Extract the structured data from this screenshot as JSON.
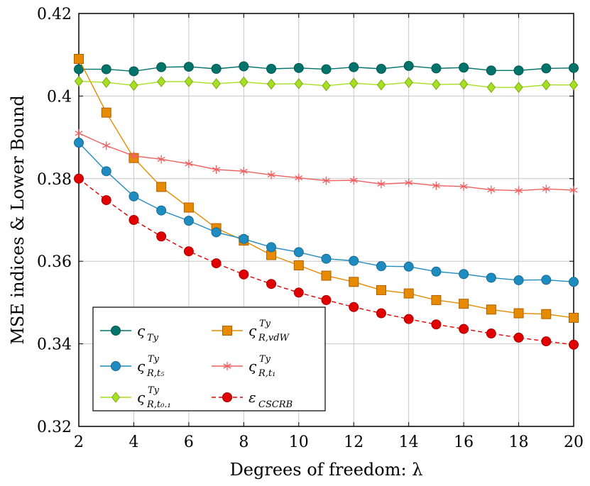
{
  "chart_data": {
    "type": "line",
    "title": "",
    "xlabel": "Degrees of freedom: λ",
    "ylabel": "MSE indices & Lower Bound",
    "xlim": [
      2,
      20
    ],
    "ylim": [
      0.32,
      0.42
    ],
    "xticks": [
      2,
      4,
      6,
      8,
      10,
      12,
      14,
      16,
      18,
      20
    ],
    "yticks": [
      0.32,
      0.34,
      0.36,
      0.38,
      0.4,
      0.42
    ],
    "ytick_labels": [
      "0.32",
      "0.34",
      "0.36",
      "0.38",
      "0.4",
      "0.42"
    ],
    "grid": true,
    "legend_position": "bottom-left",
    "x": [
      2,
      3,
      4,
      5,
      6,
      7,
      8,
      9,
      10,
      11,
      12,
      13,
      14,
      15,
      16,
      17,
      18,
      19,
      20
    ],
    "series": [
      {
        "name": "ς_Ty",
        "label_main": "ς",
        "label_sub": "Ty",
        "label_sup": "",
        "color": "#00736b",
        "marker": "circle",
        "dashed": false,
        "values": [
          0.4065,
          0.4065,
          0.406,
          0.407,
          0.4071,
          0.4066,
          0.4072,
          0.4066,
          0.4068,
          0.4065,
          0.407,
          0.4066,
          0.4073,
          0.4067,
          0.4069,
          0.4062,
          0.4062,
          0.4067,
          0.4068
        ]
      },
      {
        "name": "ς^Ty_R,vdW",
        "label_main": "ς",
        "label_sub": "R,vdW",
        "label_sup": "Ty",
        "color": "#e68a00",
        "marker": "square",
        "dashed": false,
        "values": [
          0.409,
          0.396,
          0.385,
          0.378,
          0.373,
          0.368,
          0.365,
          0.3615,
          0.359,
          0.3565,
          0.355,
          0.353,
          0.3522,
          0.3506,
          0.3497,
          0.3483,
          0.3474,
          0.3472,
          0.3463
        ]
      },
      {
        "name": "ς^Ty_R,t5",
        "label_main": "ς",
        "label_sub": "R,t₅",
        "label_sup": "Ty",
        "color": "#1e8cc0",
        "marker": "circle",
        "dashed": false,
        "values": [
          0.3887,
          0.3818,
          0.3757,
          0.3723,
          0.3698,
          0.367,
          0.3654,
          0.3634,
          0.3622,
          0.3606,
          0.3601,
          0.3588,
          0.3587,
          0.3575,
          0.3569,
          0.356,
          0.3554,
          0.3555,
          0.355
        ]
      },
      {
        "name": "ς^Ty_R,t1",
        "label_main": "ς",
        "label_sub": "R,t₁",
        "label_sup": "Ty",
        "color": "#f06060",
        "marker": "star",
        "dashed": false,
        "values": [
          0.391,
          0.388,
          0.3855,
          0.3847,
          0.3836,
          0.3822,
          0.3818,
          0.3809,
          0.3802,
          0.3795,
          0.3796,
          0.3787,
          0.379,
          0.3783,
          0.3781,
          0.3773,
          0.3771,
          0.3775,
          0.3772
        ]
      },
      {
        "name": "ς^Ty_R,t0.1",
        "label_main": "ς",
        "label_sub": "R,t₀.₁",
        "label_sup": "Ty",
        "color": "#a6e020",
        "marker": "diamond",
        "dashed": false,
        "values": [
          0.4036,
          0.4033,
          0.4026,
          0.4035,
          0.4035,
          0.403,
          0.4034,
          0.4029,
          0.403,
          0.4025,
          0.4031,
          0.4027,
          0.4033,
          0.4028,
          0.4029,
          0.4021,
          0.4021,
          0.4027,
          0.4027
        ]
      },
      {
        "name": "ε_CSCRB",
        "label_main": "ε",
        "label_sub": "CSCRB",
        "label_sup": "",
        "color": "#e00000",
        "marker": "circle",
        "dashed": true,
        "values": [
          0.38,
          0.3748,
          0.37,
          0.366,
          0.3624,
          0.3595,
          0.3568,
          0.3545,
          0.3524,
          0.3506,
          0.3489,
          0.3474,
          0.346,
          0.3447,
          0.3436,
          0.3425,
          0.3415,
          0.3406,
          0.3398
        ]
      }
    ]
  }
}
